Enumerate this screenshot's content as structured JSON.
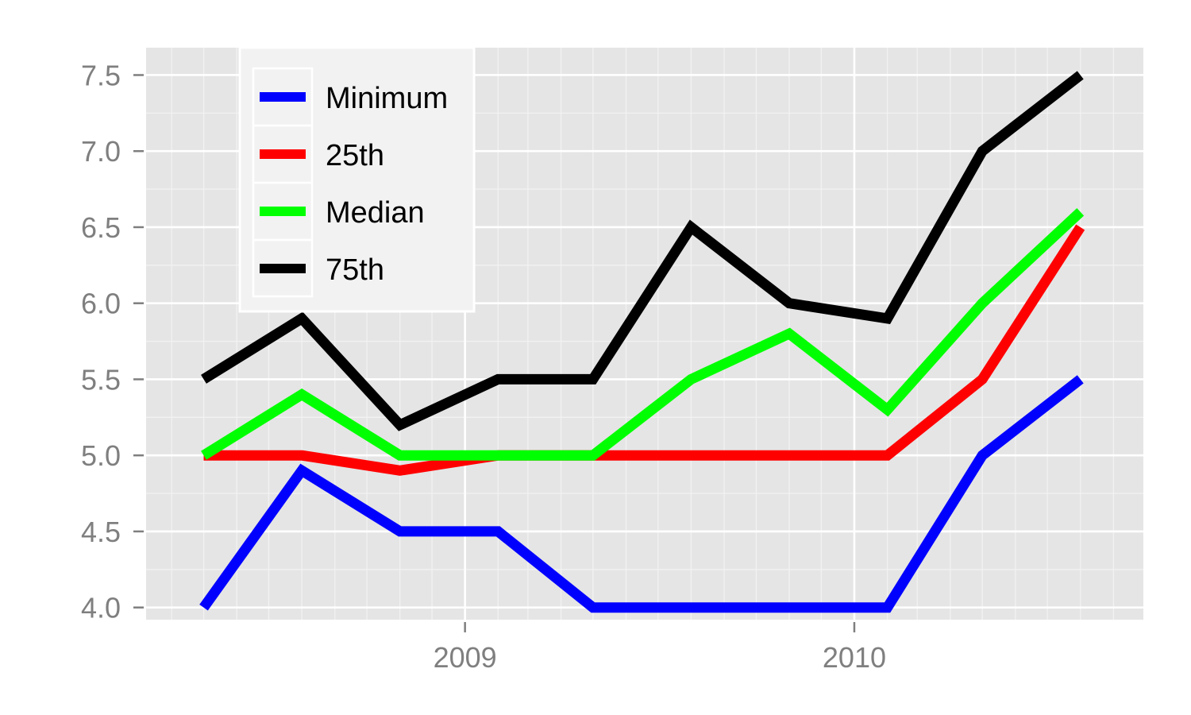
{
  "chart_data": {
    "type": "line",
    "title": "",
    "xlabel": "",
    "ylabel": "",
    "x": [
      "2008-05-01",
      "2008-08-01",
      "2008-11-01",
      "2009-02-01",
      "2009-05-01",
      "2009-08-01",
      "2009-11-01",
      "2010-02-01",
      "2010-05-01",
      "2010-08-01"
    ],
    "xlim": [
      "2008-03-08",
      "2010-09-29"
    ],
    "ylim": [
      3.92,
      7.68
    ],
    "x_ticks": [
      {
        "date": "2009-01-01",
        "label": "2009"
      },
      {
        "date": "2010-01-01",
        "label": "2010"
      }
    ],
    "y_ticks": [
      {
        "value": 4.0,
        "label": "4.0"
      },
      {
        "value": 4.5,
        "label": "4.5"
      },
      {
        "value": 5.0,
        "label": "5.0"
      },
      {
        "value": 5.5,
        "label": "5.5"
      },
      {
        "value": 6.0,
        "label": "6.0"
      },
      {
        "value": 6.5,
        "label": "6.5"
      },
      {
        "value": 7.0,
        "label": "7.0"
      },
      {
        "value": 7.5,
        "label": "7.5"
      }
    ],
    "grid": true,
    "background": "#e5e5e5",
    "legend_position": "top-left",
    "series": [
      {
        "name": "Minimum",
        "color": "#0000ff",
        "values": [
          4.0,
          4.9,
          4.5,
          4.5,
          4.0,
          4.0,
          4.0,
          4.0,
          5.0,
          5.5
        ]
      },
      {
        "name": "25th",
        "color": "#ff0000",
        "values": [
          5.0,
          5.0,
          4.9,
          5.0,
          5.0,
          5.0,
          5.0,
          5.0,
          5.5,
          6.5
        ]
      },
      {
        "name": "Median",
        "color": "#00ff00",
        "values": [
          5.0,
          5.4,
          5.0,
          5.0,
          5.0,
          5.5,
          5.8,
          5.3,
          6.0,
          6.6
        ]
      },
      {
        "name": "75th",
        "color": "#000000",
        "values": [
          5.5,
          5.9,
          5.2,
          5.5,
          5.5,
          6.5,
          6.0,
          5.9,
          7.0,
          7.5
        ]
      }
    ]
  }
}
